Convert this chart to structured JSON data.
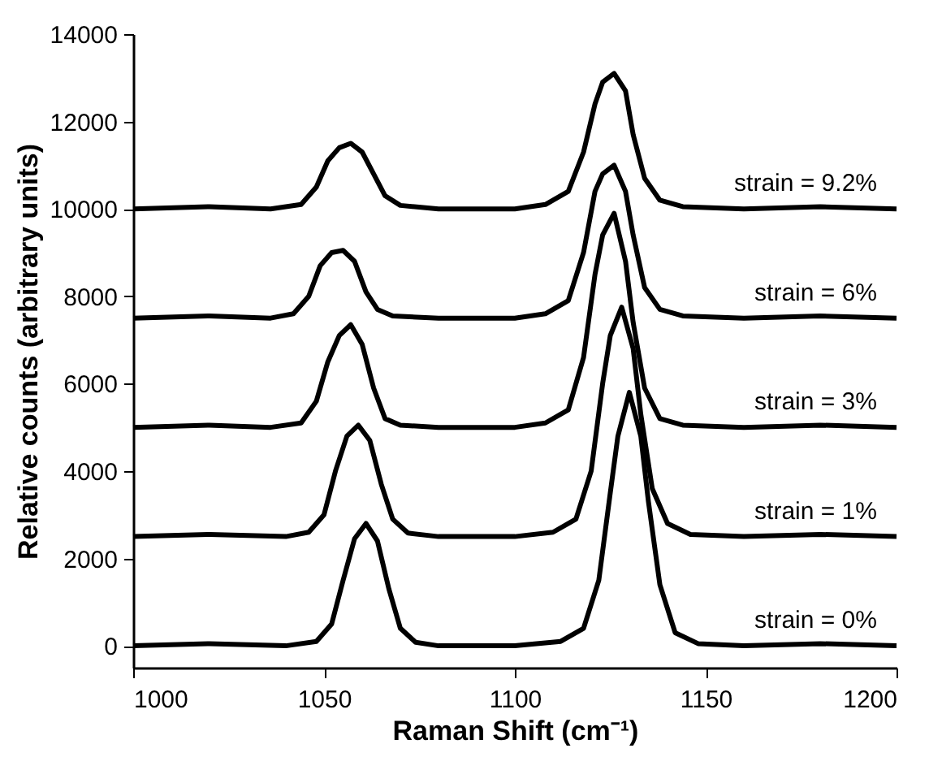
{
  "chart_data": {
    "type": "line",
    "xlabel": "Raman Shift (cm⁻¹)",
    "ylabel": "Relative counts (arbitrary units)",
    "xlim": [
      1000,
      1200
    ],
    "xticks": [
      1000,
      1050,
      1100,
      1150,
      1200
    ],
    "ylim": [
      -500,
      14000
    ],
    "yticks": [
      0,
      2000,
      4000,
      6000,
      8000,
      10000,
      12000,
      14000
    ],
    "grid": false,
    "legend": false,
    "marker": "none",
    "line_style": "solid",
    "series": [
      {
        "name": "strain = 0%",
        "color": "#000000",
        "x": [
          1000,
          1020,
          1040,
          1048,
          1052,
          1055,
          1058,
          1061,
          1064,
          1067,
          1070,
          1074,
          1080,
          1100,
          1112,
          1118,
          1122,
          1125,
          1127,
          1130,
          1133,
          1135,
          1138,
          1142,
          1148,
          1160,
          1180,
          1200
        ],
        "values": [
          0,
          50,
          0,
          100,
          500,
          1500,
          2450,
          2800,
          2400,
          1300,
          400,
          80,
          0,
          0,
          100,
          400,
          1500,
          3500,
          4800,
          5800,
          4800,
          3300,
          1400,
          300,
          50,
          0,
          50,
          0
        ]
      },
      {
        "name": "strain = 1%",
        "color": "#000000",
        "x": [
          1000,
          1020,
          1040,
          1046,
          1050,
          1053,
          1056,
          1059,
          1062,
          1065,
          1068,
          1072,
          1080,
          1100,
          1110,
          1116,
          1120,
          1123,
          1125,
          1128,
          1131,
          1133,
          1136,
          1140,
          1146,
          1160,
          1180,
          1200
        ],
        "values": [
          2500,
          2550,
          2500,
          2600,
          3000,
          4000,
          4800,
          5050,
          4700,
          3700,
          2900,
          2580,
          2500,
          2500,
          2600,
          2900,
          4000,
          6000,
          7100,
          7750,
          6800,
          5300,
          3600,
          2800,
          2550,
          2500,
          2550,
          2500
        ]
      },
      {
        "name": "strain = 3%",
        "color": "#000000",
        "x": [
          1000,
          1020,
          1036,
          1044,
          1048,
          1051,
          1054,
          1057,
          1060,
          1063,
          1066,
          1070,
          1080,
          1100,
          1108,
          1114,
          1118,
          1121,
          1123,
          1126,
          1129,
          1131,
          1134,
          1138,
          1144,
          1160,
          1180,
          1200
        ],
        "values": [
          5000,
          5050,
          5000,
          5100,
          5600,
          6500,
          7100,
          7350,
          6900,
          5900,
          5200,
          5050,
          5000,
          5000,
          5100,
          5400,
          6600,
          8500,
          9400,
          9900,
          8800,
          7400,
          5900,
          5200,
          5050,
          5000,
          5050,
          5000
        ]
      },
      {
        "name": "strain = 6%",
        "color": "#000000",
        "x": [
          1000,
          1020,
          1036,
          1042,
          1046,
          1049,
          1052,
          1055,
          1058,
          1061,
          1064,
          1068,
          1080,
          1100,
          1108,
          1114,
          1118,
          1121,
          1123,
          1126,
          1129,
          1131,
          1134,
          1138,
          1144,
          1160,
          1180,
          1200
        ],
        "values": [
          7500,
          7550,
          7500,
          7600,
          8000,
          8700,
          9000,
          9050,
          8800,
          8100,
          7700,
          7550,
          7500,
          7500,
          7600,
          7900,
          9000,
          10400,
          10800,
          11000,
          10400,
          9400,
          8200,
          7700,
          7550,
          7500,
          7550,
          7500
        ]
      },
      {
        "name": "strain = 9.2%",
        "color": "#000000",
        "x": [
          1000,
          1020,
          1036,
          1044,
          1048,
          1051,
          1054,
          1057,
          1060,
          1063,
          1066,
          1070,
          1080,
          1100,
          1108,
          1114,
          1118,
          1121,
          1123,
          1126,
          1129,
          1131,
          1134,
          1138,
          1144,
          1160,
          1180,
          1200
        ],
        "values": [
          10000,
          10050,
          10000,
          10100,
          10500,
          11100,
          11400,
          11500,
          11300,
          10800,
          10300,
          10080,
          10000,
          10000,
          10100,
          10400,
          11300,
          12400,
          12900,
          13100,
          12700,
          11700,
          10700,
          10200,
          10050,
          10000,
          10050,
          10000
        ]
      }
    ]
  }
}
